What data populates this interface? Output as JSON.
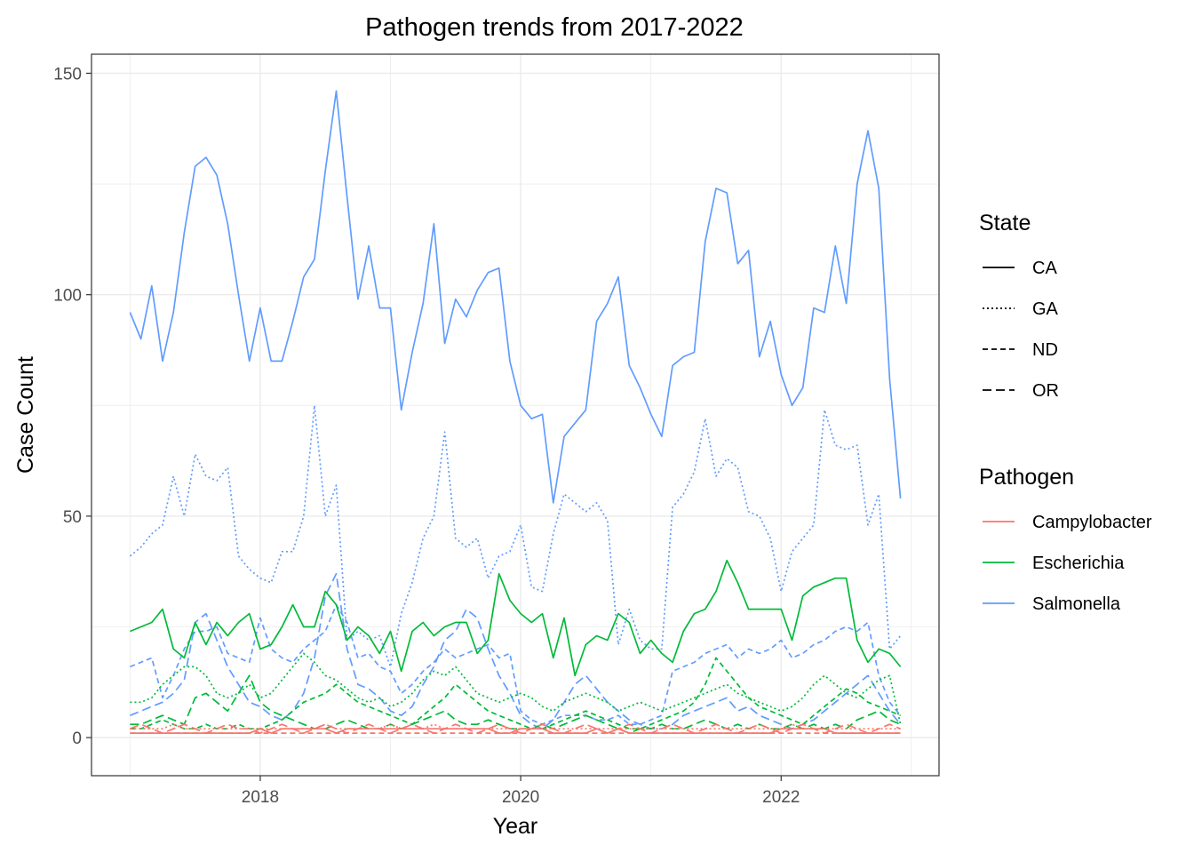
{
  "chart_data": {
    "type": "line",
    "title": "Pathogen trends from 2017-2022",
    "xlabel": "Year",
    "ylabel": "Case Count",
    "xlim": [
      "2017-01",
      "2022-12"
    ],
    "x_ticks": [
      "2018",
      "2020",
      "2022"
    ],
    "ylim": [
      0,
      150
    ],
    "y_ticks": [
      "0",
      "50",
      "100",
      "150"
    ],
    "grid": true,
    "legend_position": "right",
    "legends": {
      "state": {
        "title": "State",
        "items": [
          {
            "label": "CA",
            "dash": "solid"
          },
          {
            "label": "GA",
            "dash": "dotted"
          },
          {
            "label": "ND",
            "dash": "dashed"
          },
          {
            "label": "OR",
            "dash": "longdash"
          }
        ]
      },
      "pathogen": {
        "title": "Pathogen",
        "items": [
          {
            "label": "Campylobacter",
            "color": "#F8766D"
          },
          {
            "label": "Escherichia",
            "color": "#00BA38"
          },
          {
            "label": "Salmonella",
            "color": "#619CFF"
          }
        ]
      }
    },
    "x_start": "2017-01",
    "series": [
      {
        "pathogen": "Salmonella",
        "state": "CA",
        "values": [
          96,
          90,
          102,
          85,
          96,
          114,
          129,
          131,
          127,
          116,
          100,
          85,
          97,
          85,
          85,
          94,
          104,
          108,
          128,
          146,
          122,
          99,
          111,
          97,
          97,
          74,
          87,
          98,
          116,
          89,
          99,
          95,
          101,
          105,
          106,
          85,
          75,
          72,
          73,
          53,
          68,
          71,
          74,
          94,
          98,
          104,
          84,
          79,
          73,
          68,
          84,
          86,
          87,
          112,
          124,
          123,
          107,
          110,
          86,
          94,
          82,
          75,
          79,
          97,
          96,
          111,
          98,
          125,
          137,
          124,
          81,
          54
        ]
      },
      {
        "pathogen": "Salmonella",
        "state": "GA",
        "values": [
          41,
          43,
          46,
          48,
          59,
          50,
          64,
          59,
          58,
          61,
          41,
          38,
          36,
          35,
          42,
          42,
          50,
          75,
          50,
          57,
          22,
          24,
          22,
          23,
          16,
          28,
          35,
          45,
          50,
          69,
          45,
          43,
          45,
          36,
          41,
          42,
          48,
          34,
          33,
          46,
          55,
          53,
          51,
          53,
          49,
          21,
          29,
          22,
          20,
          20,
          52,
          55,
          60,
          72,
          59,
          63,
          61,
          51,
          50,
          45,
          33,
          42,
          45,
          48,
          74,
          66,
          65,
          66,
          48,
          55,
          20,
          23
        ]
      },
      {
        "pathogen": "Salmonella",
        "state": "ND",
        "values": [
          16,
          17,
          18,
          9,
          14,
          20,
          24,
          24,
          25,
          19,
          18,
          17,
          27,
          20,
          18,
          17,
          20,
          22,
          24,
          30,
          26,
          18,
          19,
          16,
          15,
          10,
          12,
          15,
          17,
          20,
          18,
          19,
          20,
          21,
          18,
          19,
          6,
          4,
          3,
          4,
          5,
          5,
          5,
          4,
          4,
          5,
          3,
          3,
          4,
          5,
          15,
          16,
          17,
          19,
          20,
          21,
          18,
          20,
          19,
          20,
          22,
          18,
          19,
          21,
          22,
          24,
          25,
          24,
          26,
          14,
          8,
          5
        ]
      },
      {
        "pathogen": "Salmonella",
        "state": "OR",
        "values": [
          5,
          6,
          7,
          8,
          10,
          13,
          26,
          28,
          22,
          16,
          12,
          8,
          7,
          5,
          4,
          6,
          10,
          18,
          32,
          37,
          20,
          12,
          11,
          9,
          6,
          5,
          7,
          12,
          16,
          22,
          24,
          29,
          27,
          20,
          14,
          10,
          5,
          3,
          2,
          4,
          8,
          12,
          14,
          11,
          8,
          6,
          4,
          3,
          2,
          2,
          3,
          5,
          6,
          7,
          8,
          9,
          6,
          7,
          5,
          4,
          3,
          2,
          3,
          4,
          6,
          8,
          10,
          12,
          14,
          10,
          6,
          3
        ]
      },
      {
        "pathogen": "Escherichia",
        "state": "CA",
        "values": [
          24,
          25,
          26,
          29,
          20,
          18,
          26,
          21,
          26,
          23,
          26,
          28,
          20,
          21,
          25,
          30,
          25,
          25,
          33,
          30,
          22,
          25,
          23,
          19,
          24,
          15,
          24,
          26,
          23,
          25,
          26,
          26,
          19,
          22,
          37,
          31,
          28,
          26,
          28,
          18,
          27,
          14,
          21,
          23,
          22,
          28,
          26,
          19,
          22,
          19,
          17,
          24,
          28,
          29,
          33,
          40,
          35,
          29,
          29,
          29,
          29,
          22,
          32,
          34,
          35,
          36,
          36,
          22,
          17,
          20,
          19,
          16
        ]
      },
      {
        "pathogen": "Escherichia",
        "state": "GA",
        "values": [
          8,
          8,
          9,
          12,
          14,
          16,
          16,
          14,
          10,
          9,
          10,
          12,
          9,
          10,
          13,
          16,
          19,
          17,
          14,
          13,
          11,
          9,
          8,
          9,
          7,
          8,
          10,
          13,
          15,
          14,
          16,
          13,
          10,
          9,
          8,
          9,
          10,
          9,
          7,
          6,
          8,
          9,
          10,
          9,
          8,
          6,
          7,
          8,
          7,
          6,
          7,
          8,
          9,
          10,
          11,
          12,
          10,
          9,
          8,
          7,
          6,
          7,
          9,
          12,
          14,
          12,
          10,
          9,
          11,
          13,
          14,
          3
        ]
      },
      {
        "pathogen": "Escherichia",
        "state": "ND",
        "values": [
          2,
          2,
          3,
          4,
          3,
          2,
          2,
          3,
          2,
          2,
          3,
          2,
          2,
          3,
          4,
          6,
          8,
          9,
          10,
          12,
          10,
          8,
          7,
          6,
          5,
          4,
          3,
          5,
          7,
          9,
          12,
          10,
          8,
          6,
          5,
          4,
          3,
          2,
          2,
          3,
          4,
          5,
          6,
          5,
          4,
          3,
          2,
          2,
          3,
          4,
          5,
          6,
          8,
          12,
          18,
          15,
          12,
          9,
          7,
          6,
          5,
          4,
          3,
          5,
          7,
          9,
          11,
          10,
          8,
          7,
          6,
          5
        ]
      },
      {
        "pathogen": "Escherichia",
        "state": "OR",
        "values": [
          3,
          3,
          4,
          5,
          4,
          3,
          9,
          10,
          8,
          6,
          10,
          14,
          8,
          6,
          5,
          4,
          3,
          2,
          2,
          3,
          4,
          3,
          2,
          2,
          3,
          2,
          3,
          4,
          5,
          6,
          4,
          3,
          3,
          4,
          3,
          2,
          2,
          2,
          3,
          2,
          3,
          4,
          5,
          4,
          3,
          2,
          1,
          2,
          2,
          3,
          2,
          2,
          3,
          4,
          3,
          2,
          3,
          2,
          3,
          2,
          2,
          3,
          2,
          3,
          2,
          3,
          2,
          4,
          5,
          6,
          4,
          3
        ]
      },
      {
        "pathogen": "Campylobacter",
        "state": "CA",
        "values": [
          1,
          1,
          1,
          1,
          1,
          1,
          1,
          1,
          1,
          1,
          1,
          1,
          2,
          1,
          2,
          2,
          2,
          2,
          2,
          1,
          2,
          2,
          2,
          2,
          2,
          2,
          2,
          2,
          2,
          2,
          2,
          2,
          2,
          2,
          1,
          1,
          2,
          2,
          2,
          1,
          1,
          1,
          1,
          2,
          1,
          2,
          1,
          1,
          1,
          1,
          1,
          1,
          1,
          1,
          1,
          1,
          1,
          1,
          1,
          1,
          2,
          2,
          2,
          2,
          2,
          1,
          1,
          1,
          1,
          1,
          1,
          1
        ]
      },
      {
        "pathogen": "Campylobacter",
        "state": "GA",
        "values": [
          2,
          2,
          2,
          2,
          3,
          2,
          2,
          2,
          2,
          2,
          2,
          2,
          2,
          2,
          2,
          2,
          2,
          2,
          3,
          2,
          2,
          2,
          2,
          2,
          3,
          2,
          2,
          2,
          3,
          2,
          2,
          2,
          2,
          2,
          2,
          2,
          2,
          2,
          2,
          2,
          2,
          2,
          2,
          2,
          2,
          2,
          2,
          2,
          2,
          2,
          2,
          2,
          2,
          2,
          2,
          2,
          2,
          2,
          2,
          2,
          2,
          3,
          2,
          2,
          2,
          2,
          2,
          2,
          2,
          2,
          2,
          2
        ]
      },
      {
        "pathogen": "Campylobacter",
        "state": "ND",
        "values": [
          1,
          1,
          1,
          1,
          1,
          1,
          1,
          1,
          1,
          1,
          1,
          1,
          1,
          1,
          1,
          1,
          1,
          1,
          1,
          1,
          1,
          1,
          1,
          1,
          1,
          1,
          1,
          1,
          1,
          1,
          1,
          1,
          1,
          1,
          1,
          1,
          1,
          1,
          1,
          1,
          1,
          1,
          1,
          1,
          1,
          1,
          1,
          1,
          1,
          1,
          1,
          1,
          1,
          1,
          1,
          1,
          1,
          1,
          1,
          1,
          1,
          1,
          1,
          1,
          1,
          1,
          1,
          1,
          1,
          1,
          1,
          1
        ]
      },
      {
        "pathogen": "Campylobacter",
        "state": "OR",
        "values": [
          2,
          3,
          2,
          1,
          2,
          3,
          2,
          1,
          2,
          3,
          2,
          2,
          1,
          2,
          3,
          2,
          1,
          2,
          3,
          2,
          1,
          2,
          3,
          2,
          1,
          2,
          3,
          2,
          1,
          2,
          3,
          2,
          1,
          2,
          3,
          2,
          1,
          2,
          3,
          2,
          1,
          2,
          3,
          2,
          1,
          2,
          3,
          2,
          1,
          2,
          3,
          2,
          1,
          2,
          3,
          2,
          1,
          2,
          3,
          2,
          1,
          2,
          3,
          2,
          1,
          2,
          3,
          2,
          1,
          2,
          3,
          2
        ]
      }
    ]
  }
}
